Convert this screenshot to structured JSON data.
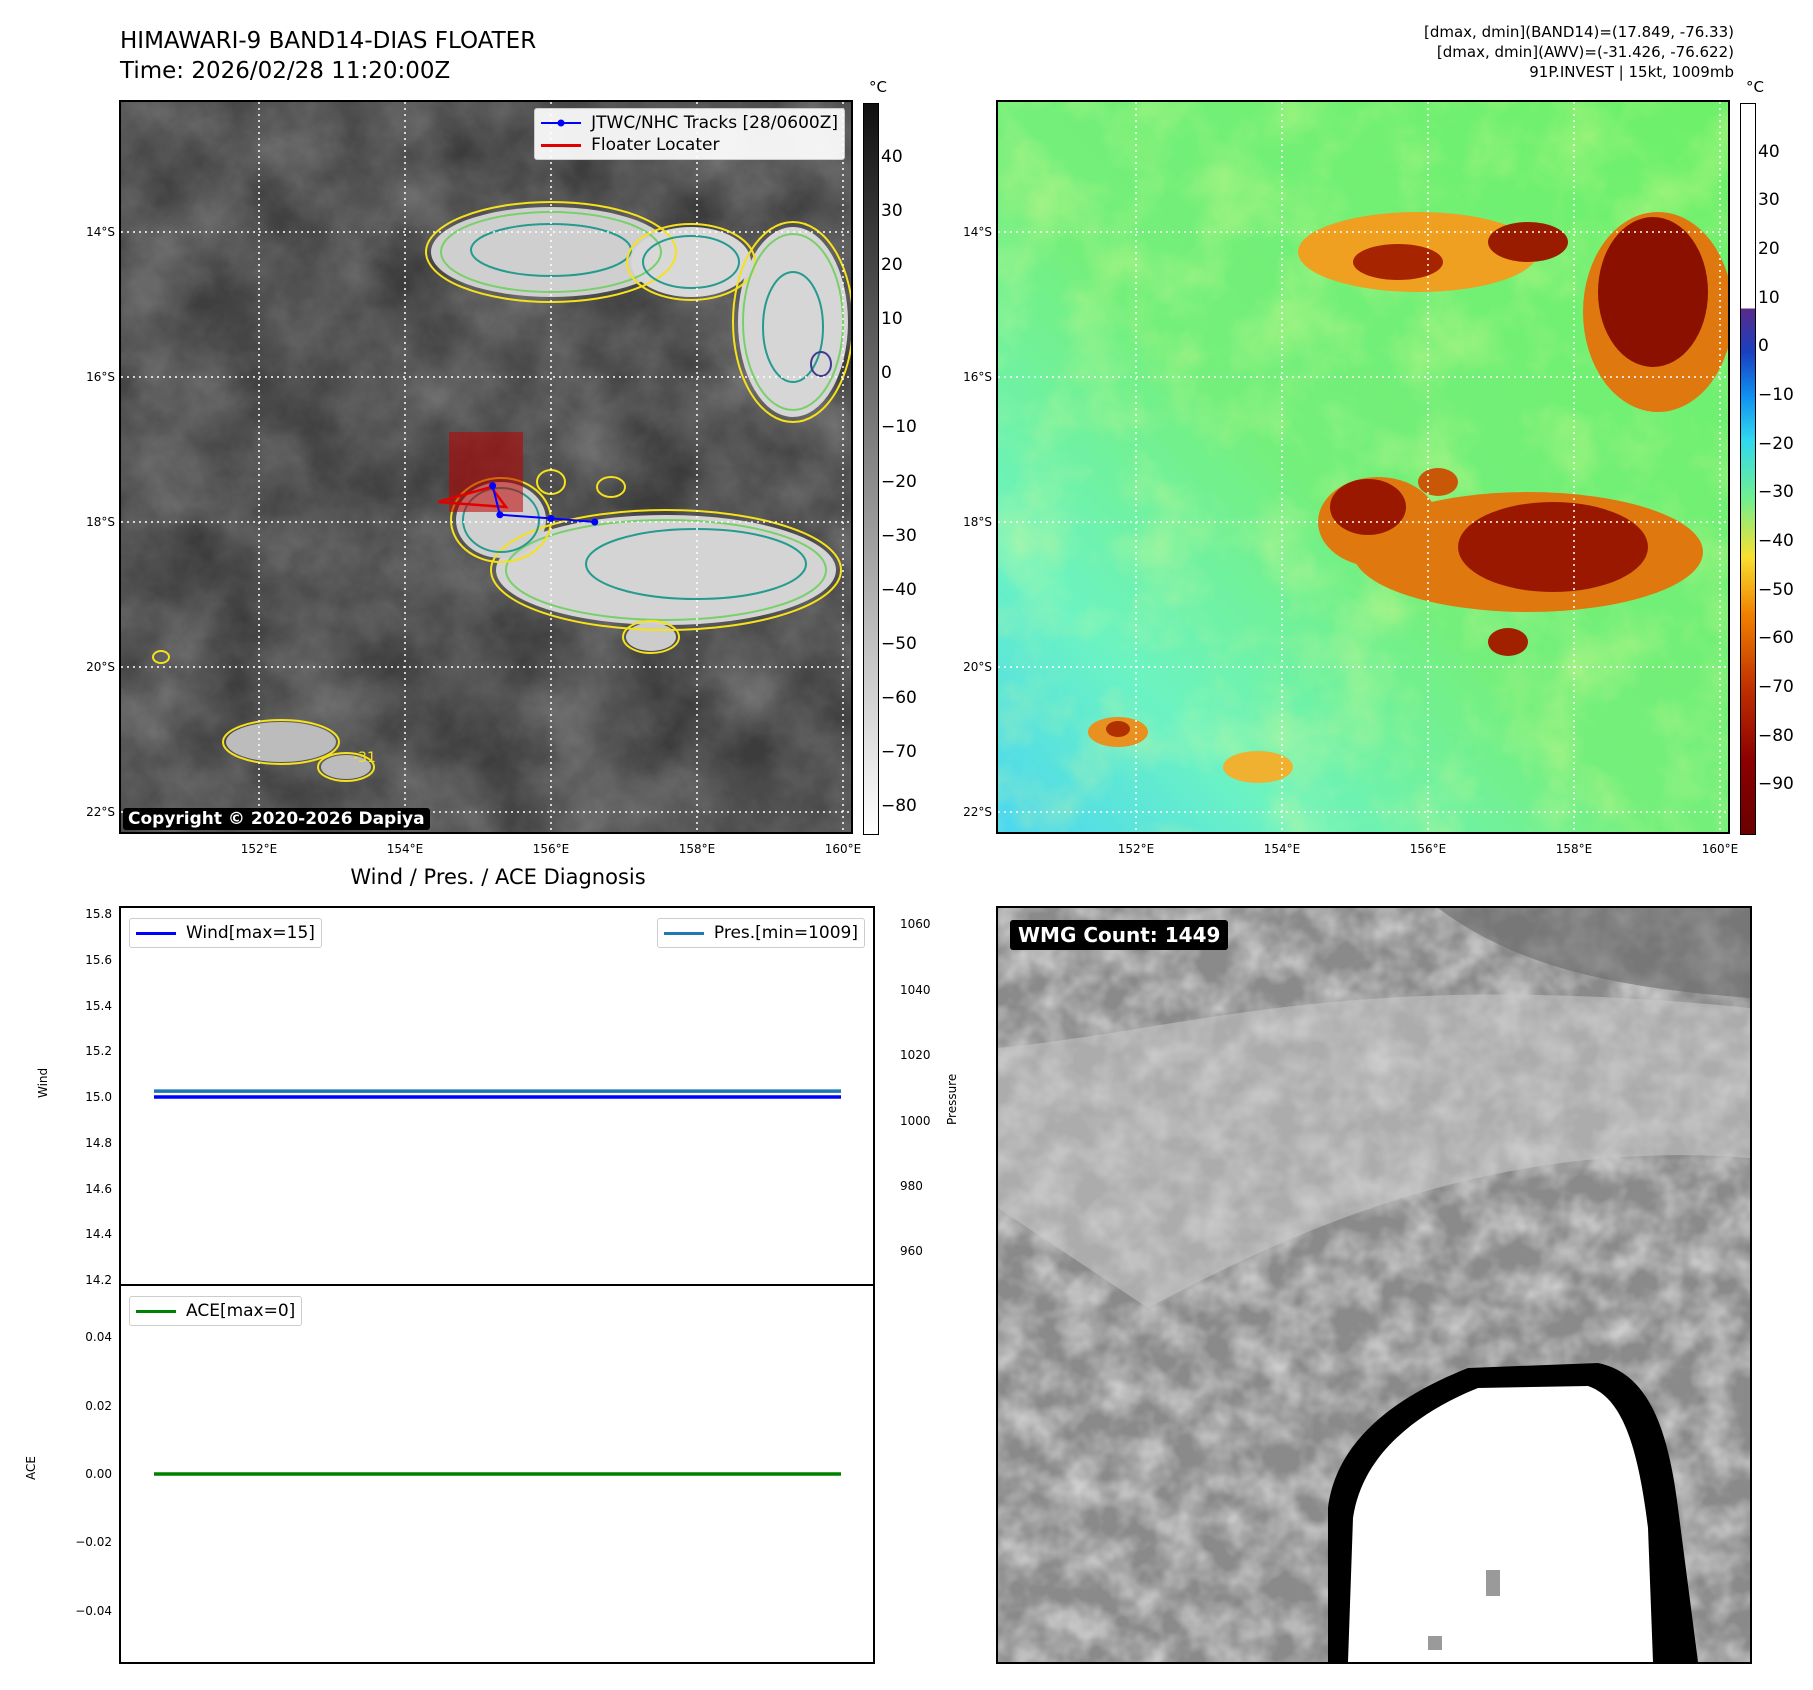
{
  "header": {
    "title_line1": "HIMAWARI-9 BAND14-DIAS FLOATER",
    "title_line2": "Time: 2026/02/28 11:20:00Z",
    "stats_line1": "[dmax, dmin](BAND14)=(17.849, -76.33)",
    "stats_line2": "[dmax, dmin](AWV)=(-31.426, -76.622)",
    "stats_line3": "91P.INVEST | 15kt, 1009mb"
  },
  "colormap": {
    "gray_unit": "°C",
    "gray_ticks": [
      "40",
      "30",
      "20",
      "10",
      "0",
      "−10",
      "−20",
      "−30",
      "−40",
      "−50",
      "−60",
      "−70",
      "−80"
    ],
    "awv_unit": "°C",
    "awv_ticks": [
      "40",
      "30",
      "20",
      "10",
      "0",
      "−10",
      "−20",
      "−30",
      "−40",
      "−50",
      "−60",
      "−70",
      "−80",
      "−90"
    ]
  },
  "map": {
    "lat_ticks": [
      "14°S",
      "16°S",
      "18°S",
      "20°S",
      "22°S"
    ],
    "lon_ticks": [
      "152°E",
      "154°E",
      "156°E",
      "158°E",
      "160°E"
    ],
    "legend": {
      "track_label": "JTWC/NHC Tracks [28/0600Z]",
      "locater_label": "Floater Locater"
    },
    "copyright": "Copyright © 2020-2026 Dapiya",
    "contour_label": "-31",
    "track_points": [
      [
        155.2,
        -17.5
      ],
      [
        155.3,
        -17.9
      ],
      [
        156.0,
        -17.95
      ],
      [
        156.6,
        -18.0
      ]
    ]
  },
  "diagnosis": {
    "title": "Wind / Pres. / ACE Diagnosis",
    "wind_ylabel": "Wind",
    "pres_ylabel": "Pressure",
    "ace_ylabel": "ACE",
    "wind_legend": "Wind[max=15]",
    "pres_legend": "Pres.[min=1009]",
    "ace_legend": "ACE[max=0]",
    "wind_ticks": [
      "15.8",
      "15.6",
      "15.4",
      "15.2",
      "15.0",
      "14.8",
      "14.6",
      "14.4",
      "14.2"
    ],
    "pres_ticks": [
      "1060",
      "1040",
      "1020",
      "1000",
      "980",
      "960"
    ],
    "ace_ticks": [
      "0.04",
      "0.02",
      "0.00",
      "−0.02",
      "−0.04"
    ],
    "colors": {
      "wind": "#0000ff",
      "pres": "#1f77b4",
      "ace": "#008000"
    }
  },
  "wmg": {
    "label": "WMG Count: 1449"
  },
  "chart_data": [
    {
      "type": "line",
      "series": [
        {
          "name": "Wind[max=15]",
          "values": [
            15,
            15
          ]
        }
      ],
      "ylim": [
        14.2,
        15.8
      ],
      "ylabel": "Wind"
    },
    {
      "type": "line",
      "series": [
        {
          "name": "Pres.[min=1009]",
          "values": [
            1009,
            1009
          ]
        }
      ],
      "ylim": [
        950,
        1065
      ],
      "ylabel": "Pressure"
    },
    {
      "type": "line",
      "series": [
        {
          "name": "ACE[max=0]",
          "values": [
            0,
            0
          ]
        }
      ],
      "ylim": [
        -0.055,
        0.055
      ],
      "ylabel": "ACE"
    }
  ]
}
